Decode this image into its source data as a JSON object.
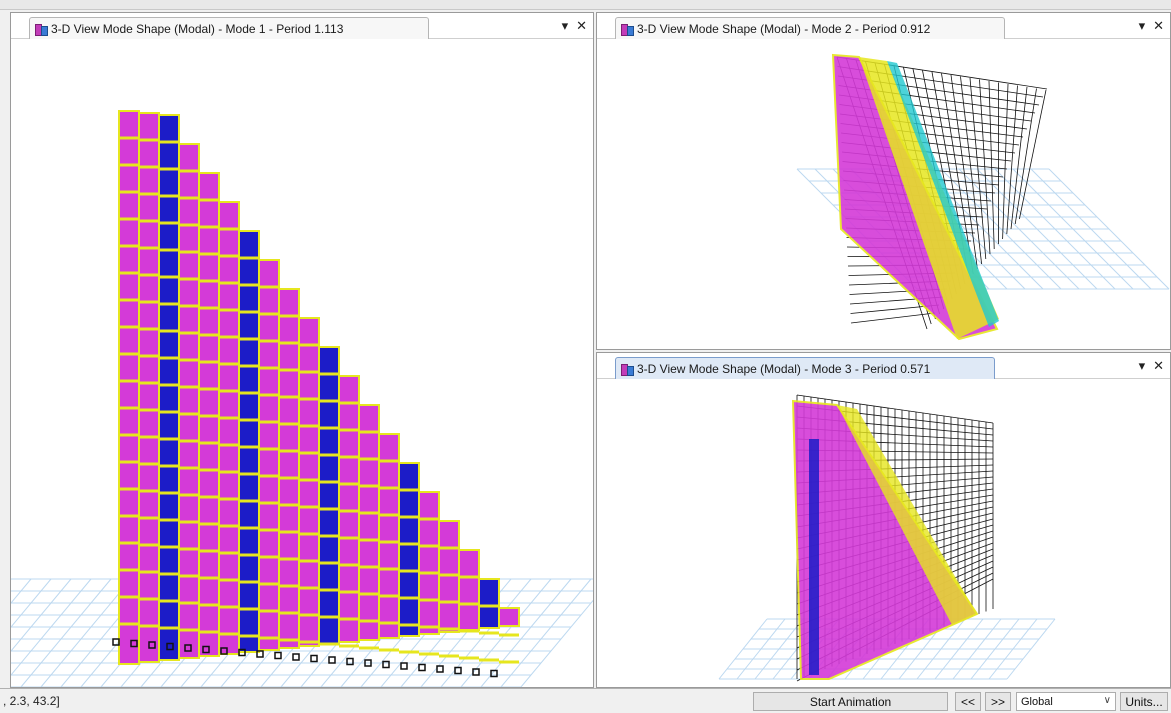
{
  "panes": {
    "mode1": {
      "tab_title": "3-D View  Mode Shape (Modal) - Mode 1 - Period 1.113",
      "dropdown_glyph": "▾",
      "close_glyph": "✕"
    },
    "mode2": {
      "tab_title": "3-D View  Mode Shape (Modal) - Mode 2 - Period 0.912",
      "dropdown_glyph": "▾",
      "close_glyph": "✕"
    },
    "mode3": {
      "tab_title": "3-D View  Mode Shape (Modal) - Mode 3 - Period 0.571",
      "dropdown_glyph": "▾",
      "close_glyph": "✕"
    }
  },
  "status_bar": {
    "coords": ", 2.3, 43.2]",
    "start_animation_label": "Start Animation",
    "prev_label": "<<",
    "next_label": ">>",
    "coord_system_value": "Global",
    "coord_caret": "∨",
    "units_label": "Units..."
  },
  "colors": {
    "shell_magenta": "#d43ad8",
    "frame_yellow": "#e6e61e",
    "shell_blue": "#1c1cc8",
    "joint_cyan": "#20c8d0",
    "grid_blue": "#bcd8f0",
    "undeformed_black": "#111111"
  }
}
